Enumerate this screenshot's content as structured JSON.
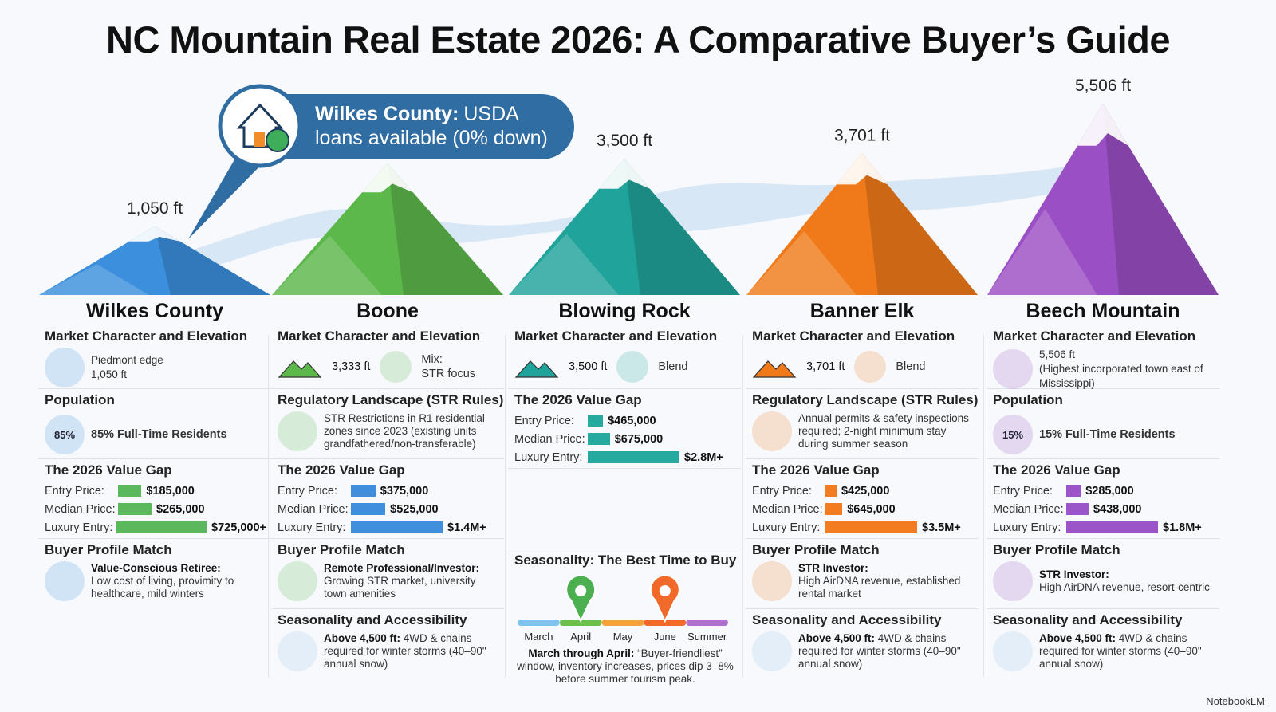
{
  "title": "NC Mountain Real Estate 2026: A Comparative Buyer’s Guide",
  "callout": {
    "bold": "Wilkes County:",
    "text": [
      "USDA",
      "loans available (0% down)"
    ]
  },
  "columns": [
    {
      "name": "Wilkes County",
      "color": "#3b8fdc",
      "bar_color": "#5cb85c",
      "elevation": {
        "value": 1050,
        "label": "1,050 ft"
      },
      "sections": [
        {
          "heading": "Market Character and Elevation",
          "lines": [
            "Piedmont edge",
            "1,050 ft"
          ]
        },
        {
          "heading": "Population",
          "badge": "85%",
          "text": "85% Full-Time Residents"
        },
        {
          "heading": "The 2026 Value Gap",
          "rows": [
            {
              "label": "Entry Price:",
              "value": 185000,
              "value_label": "$185,000"
            },
            {
              "label": "Median Price:",
              "value": 265000,
              "value_label": "$265,000"
            },
            {
              "label": "Luxury Entry:",
              "value": 725000,
              "value_label": "$725,000+"
            }
          ]
        },
        {
          "heading": "Buyer Profile Match",
          "role": "Value-Conscious Retiree:",
          "text": "Low cost of living, provimity to healthcare, mild winters"
        }
      ]
    },
    {
      "name": "Boone",
      "color": "#5cb84a",
      "bar_color": "#3f8fdc",
      "elevation": {
        "value": 3333,
        "label": "3,333 ft"
      },
      "sections": [
        {
          "heading": "Market Character and Elevation",
          "elevation": "3,333 ft",
          "mix": [
            "Mix:",
            "STR focus"
          ]
        },
        {
          "heading": "Regulatory Landscape (STR Rules)",
          "text": "STR Restrictions in R1 residential zones since 2023 (existing units grandfathered/non-transferable)"
        },
        {
          "heading": "The 2026 Value Gap",
          "rows": [
            {
              "label": "Entry Price:",
              "value": 375000,
              "value_label": "$375,000"
            },
            {
              "label": "Median Price:",
              "value": 525000,
              "value_label": "$525,000"
            },
            {
              "label": "Luxury Entry:",
              "value": 1400000,
              "value_label": "$1.4M+"
            }
          ]
        },
        {
          "heading": "Buyer Profile Match",
          "role": "Remote Professional/Investor:",
          "text": "Growing STR market, university town amenities"
        },
        {
          "heading": "Seasonality and Accessibility",
          "bold": "Above 4,500 ft:",
          "text": "4WD & chains required for winter storms (40–90\" annual snow)"
        }
      ]
    },
    {
      "name": "Blowing Rock",
      "color": "#1fa39a",
      "bar_color": "#26aaa0",
      "elevation": {
        "value": 3500,
        "label": "3,500 ft"
      },
      "sections": [
        {
          "heading": "Market Character and Elevation",
          "elevation": "3,500 ft",
          "mix": [
            "Blend"
          ]
        },
        {
          "heading": "The 2026 Value Gap",
          "rows": [
            {
              "label": "Entry Price:",
              "value": 465000,
              "value_label": "$465,000"
            },
            {
              "label": "Median Price:",
              "value": 675000,
              "value_label": "$675,000"
            },
            {
              "label": "Luxury Entry:",
              "value": 2800000,
              "value_label": "$2.8M+"
            }
          ]
        },
        {
          "heading": "Seasonality: The Best Time to Buy",
          "months": [
            "March",
            "April",
            "May",
            "June",
            "Summer"
          ],
          "bold": "March through April:",
          "text": "“Buyer-friendliest” window, inventory increases, prices dip 3–8% before summer tourism peak."
        }
      ]
    },
    {
      "name": "Banner Elk",
      "color": "#f07a1a",
      "bar_color": "#f47c20",
      "elevation": {
        "value": 3701,
        "label": "3,701 ft"
      },
      "sections": [
        {
          "heading": "Market Character and Elevation",
          "elevation": "3,701 ft",
          "mix": [
            "Blend"
          ]
        },
        {
          "heading": "Regulatory Landscape (STR Rules)",
          "text": "Annual permits & safety inspections required; 2-night minimum stay during summer season"
        },
        {
          "heading": "The 2026 Value Gap",
          "rows": [
            {
              "label": "Entry Price:",
              "value": 425000,
              "value_label": "$425,000"
            },
            {
              "label": "Median Price:",
              "value": 645000,
              "value_label": "$645,000"
            },
            {
              "label": "Luxury Entry:",
              "value": 3500000,
              "value_label": "$3.5M+"
            }
          ]
        },
        {
          "heading": "Buyer Profile Match",
          "role": "STR Investor:",
          "text": "High AirDNA revenue, established rental market"
        },
        {
          "heading": "Seasonality and Accessibility",
          "bold": "Above 4,500 ft:",
          "text": "4WD & chains required for winter storms (40–90\" annual snow)"
        }
      ]
    },
    {
      "name": "Beech Mountain",
      "color": "#9b4fc4",
      "bar_color": "#9b55c8",
      "elevation": {
        "value": 5506,
        "label": "5,506 ft"
      },
      "sections": [
        {
          "heading": "Market Character and Elevation",
          "lines": [
            "5,506 ft",
            "(Highest incorporated town east of Mississippi)"
          ]
        },
        {
          "heading": "Population",
          "badge": "15%",
          "text": "15% Full-Time Residents"
        },
        {
          "heading": "The 2026 Value Gap",
          "rows": [
            {
              "label": "Entry Price:",
              "value": 285000,
              "value_label": "$285,000"
            },
            {
              "label": "Median Price:",
              "value": 438000,
              "value_label": "$438,000"
            },
            {
              "label": "Luxury Entry:",
              "value": 1800000,
              "value_label": "$1.8M+"
            }
          ]
        },
        {
          "heading": "Buyer Profile Match",
          "role": "STR Investor:",
          "text": "High AirDNA revenue, resort-centric"
        },
        {
          "heading": "Seasonality and Accessibility",
          "bold": "Above 4,500 ft:",
          "text": "4WD & chains required for winter storms (40–90\" annual snow)"
        }
      ]
    }
  ],
  "footer": "NotebookLM"
}
